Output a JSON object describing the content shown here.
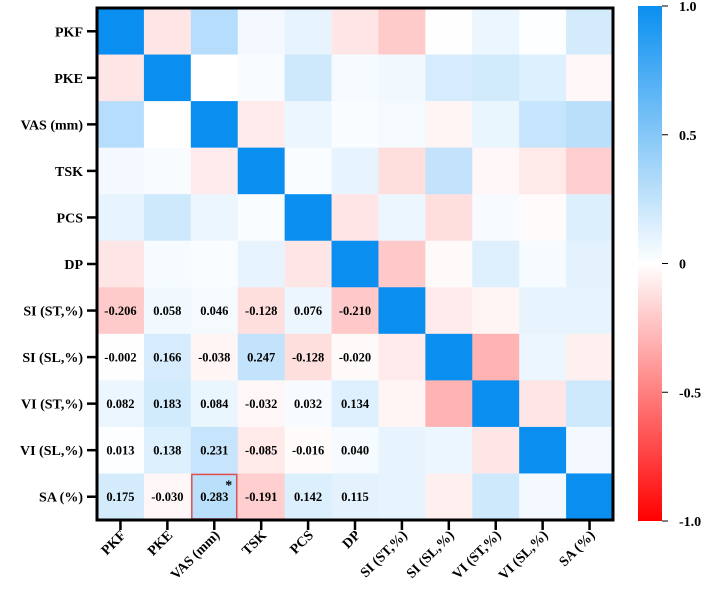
{
  "chart_data": {
    "type": "heatmap",
    "title": "",
    "xlabel": "",
    "ylabel": "",
    "variables": [
      "PKF",
      "PKE",
      "VAS (mm)",
      "TSK",
      "PCS",
      "DP",
      "SI (ST,%)",
      "SI (SL,%)",
      "VI (ST,%)",
      "VI (SL,%)",
      "SA (%)"
    ],
    "matrix": [
      [
        1.0,
        -0.1,
        0.3,
        0.05,
        0.1,
        -0.1,
        -0.206,
        -0.002,
        0.082,
        0.013,
        0.175
      ],
      [
        -0.1,
        1.0,
        0.0,
        0.03,
        0.2,
        0.04,
        0.058,
        0.166,
        0.183,
        0.138,
        -0.03
      ],
      [
        0.3,
        0.0,
        1.0,
        -0.08,
        0.08,
        0.02,
        0.046,
        -0.038,
        0.084,
        0.231,
        0.283
      ],
      [
        0.05,
        0.03,
        -0.08,
        1.0,
        0.02,
        0.1,
        -0.128,
        0.247,
        -0.032,
        -0.085,
        -0.191
      ],
      [
        0.1,
        0.2,
        0.08,
        0.02,
        1.0,
        -0.1,
        0.076,
        -0.128,
        0.032,
        -0.016,
        0.142
      ],
      [
        -0.1,
        0.04,
        0.02,
        0.1,
        -0.1,
        1.0,
        -0.21,
        -0.02,
        0.134,
        0.04,
        0.115
      ],
      [
        -0.206,
        0.058,
        0.046,
        -0.128,
        0.076,
        -0.21,
        1.0,
        -0.08,
        -0.04,
        0.1,
        0.1
      ],
      [
        -0.002,
        0.166,
        -0.038,
        0.247,
        -0.128,
        -0.02,
        -0.08,
        1.0,
        -0.3,
        0.08,
        -0.06
      ],
      [
        0.082,
        0.183,
        0.084,
        -0.032,
        0.032,
        0.134,
        -0.04,
        -0.3,
        1.0,
        -0.1,
        0.2
      ],
      [
        0.013,
        0.138,
        0.231,
        -0.085,
        -0.016,
        0.04,
        0.1,
        0.08,
        -0.1,
        1.0,
        0.05
      ],
      [
        0.175,
        -0.03,
        0.283,
        -0.191,
        0.142,
        0.115,
        0.1,
        -0.06,
        0.2,
        0.05,
        1.0
      ]
    ],
    "labeled_cells": {
      "rows": [
        6,
        7,
        8,
        9,
        10
      ],
      "cols": [
        0,
        1,
        2,
        3,
        4,
        5
      ],
      "text": [
        [
          "-0.206",
          "0.058",
          "0.046",
          "-0.128",
          "0.076",
          "-0.210"
        ],
        [
          "-0.002",
          "0.166",
          "-0.038",
          "0.247",
          "-0.128",
          "-0.020"
        ],
        [
          "0.082",
          "0.183",
          "0.084",
          "-0.032",
          "0.032",
          "0.134"
        ],
        [
          "0.013",
          "0.138",
          "0.231",
          "-0.085",
          "-0.016",
          "0.040"
        ],
        [
          "0.175",
          "-0.030",
          "0.283",
          "-0.191",
          "0.142",
          "0.115"
        ]
      ]
    },
    "highlight": {
      "row": 10,
      "col": 2,
      "marker": "*"
    },
    "colorbar": {
      "range": [
        -1.0,
        1.0
      ],
      "ticks": [
        "1.0",
        "0.5",
        "0",
        "-0.5",
        "-1.0"
      ],
      "tick_values": [
        1.0,
        0.5,
        0,
        -0.5,
        -1.0
      ],
      "colors": {
        "positive": "#0a8ff0",
        "zero": "#ffffff",
        "negative": "#ff0000"
      }
    },
    "colors": {
      "highlight_border": "#e05050"
    }
  }
}
